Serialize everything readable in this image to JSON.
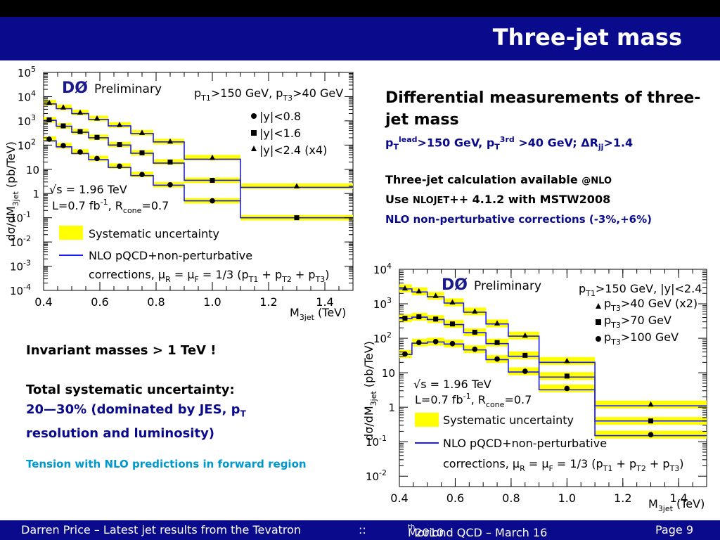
{
  "slide": {
    "title": "Three-jet mass"
  },
  "right_text": {
    "heading": "Differential measurements of three-jet mass",
    "cuts": {
      "pt": "p",
      "t_sub": "T",
      "lead_sup": "lead",
      "lead_val": ">150 GeV, p",
      "t_sub2": "T",
      "third_sup": "3rd",
      "third_val": " >40 GeV;  ",
      "dr": "ΔR",
      "jj_sub": "jj",
      "dr_val": ">1.4"
    },
    "calc_line": "Three-jet calculation available ",
    "calc_at": "@NLO",
    "use_line_a": "Use ",
    "use_nlojet": "NLOJET",
    "use_line_b": "++ 4.1.2 with MSTW2008",
    "np_line": "NLO non-perturbative corrections (-3%,+6%)"
  },
  "left_text": {
    "invariant": "Invariant masses > 1 TeV !",
    "total_syst": "Total systematic uncertainty:",
    "syst_detail_a": "20—30% (dominated by JES, p",
    "syst_detail_t": "T",
    "syst_detail_b": "resolution and luminosity)",
    "tension": "Tension with NLO predictions in forward region"
  },
  "footer": {
    "author": "Darren Price – Latest jet results from the Tevatron",
    "sep": "::",
    "conf_a": "Moriond QCD – March 16",
    "conf_sup": "th",
    "conf_b": " 2010",
    "page": "Page 9"
  },
  "colors": {
    "title_bar": "#0a0a8c",
    "band": "#ffff00",
    "nlo_line": "#1a1aff",
    "tension_text": "#0099cc"
  },
  "chart_data": [
    {
      "type": "line",
      "title": "",
      "experiment": "DØ",
      "preliminary": "Preliminary",
      "xlabel": "M",
      "xlabel_sub": "3jet",
      "xunit": " (TeV)",
      "ylabel": "dσ/dM",
      "ylabel_sub": "3jet",
      "yunit": " (pb/TeV)",
      "xlim": [
        0.4,
        1.5
      ],
      "ylim": [
        0.0001,
        100000
      ],
      "yscale": "log",
      "xticks": [
        "0.4",
        "0.6",
        "0.8",
        "1.0",
        "1.2",
        "1.4"
      ],
      "xtick_values": [
        0.4,
        0.6,
        0.8,
        1.0,
        1.2,
        1.4
      ],
      "yticks": [
        {
          "value": 100000,
          "base": "10",
          "exp": "5"
        },
        {
          "value": 10000,
          "base": "10",
          "exp": "4"
        },
        {
          "value": 1000,
          "base": "10",
          "exp": "3"
        },
        {
          "value": 100,
          "base": "10",
          "exp": "2"
        },
        {
          "value": 10,
          "base": "10",
          "exp": ""
        },
        {
          "value": 1,
          "base": "1",
          "exp": ""
        },
        {
          "value": 0.1,
          "base": "10",
          "exp": "-1"
        },
        {
          "value": 0.01,
          "base": "10",
          "exp": "-2"
        },
        {
          "value": 0.001,
          "base": "10",
          "exp": "-3"
        },
        {
          "value": 0.0001,
          "base": "10",
          "exp": "-4"
        }
      ],
      "cuts": {
        "a": "p",
        "a_sub": "T1",
        "b": ">150 GeV, p",
        "b_sub": "T3",
        "c": ">40 GeV"
      },
      "bin_edges": [
        0.4,
        0.445,
        0.5,
        0.56,
        0.63,
        0.71,
        0.79,
        0.9,
        1.1,
        1.5
      ],
      "series": [
        {
          "name": "|y|<0.8",
          "marker": "circle",
          "x": [
            0.42,
            0.47,
            0.53,
            0.59,
            0.67,
            0.75,
            0.85,
            1.0,
            1.3
          ],
          "y": [
            175,
            95,
            52,
            28,
            13.5,
            6.1,
            2.3,
            0.5,
            null
          ],
          "nlo": [
            150,
            85,
            45,
            25,
            12,
            5.5,
            2.2,
            0.5,
            null
          ]
        },
        {
          "name": "|y|<1.6",
          "marker": "square",
          "x": [
            0.42,
            0.47,
            0.53,
            0.59,
            0.67,
            0.75,
            0.85,
            1.0,
            1.3
          ],
          "y": [
            1100,
            620,
            360,
            210,
            105,
            48,
            20,
            3.5,
            0.1
          ],
          "nlo": [
            1050,
            600,
            340,
            200,
            100,
            46,
            18,
            3.5,
            0.1
          ]
        },
        {
          "name": "|y|<2.4 (x4)",
          "marker": "triangle",
          "x": [
            0.42,
            0.47,
            0.53,
            0.59,
            0.67,
            0.75,
            0.85,
            1.0,
            1.3
          ],
          "y": [
            5600,
            3600,
            2200,
            1250,
            680,
            320,
            140,
            30,
            2.0
          ],
          "nlo": [
            5000,
            3200,
            2000,
            1150,
            620,
            300,
            135,
            26,
            1.8
          ]
        }
      ],
      "sqrt_s": "√s = 1.96 TeV",
      "lumi_a": "L=0.7 fb",
      "lumi_sup": "-1",
      "lumi_b": ", R",
      "lumi_sub": "cone",
      "lumi_c": "=0.7",
      "legend_syst": "Systematic uncertainty",
      "legend_nlo": "NLO pQCD+non-perturbative",
      "legend_corr_a": "corrections, μ",
      "legend_corr_r": "R",
      "legend_corr_b": " = μ",
      "legend_corr_f": "F",
      "legend_corr_c": " = 1/3 (p",
      "legend_corr_t1": "T1",
      "legend_corr_d": " + p",
      "legend_corr_t2": "T2",
      "legend_corr_e": " + p",
      "legend_corr_t3": "T3",
      "legend_corr_f2": ")",
      "grid": false,
      "legend_position": "right"
    },
    {
      "type": "line",
      "title": "",
      "experiment": "DØ",
      "preliminary": "Preliminary",
      "xlabel": "M",
      "xlabel_sub": "3jet",
      "xunit": " (TeV)",
      "ylabel": "dσ/dM",
      "ylabel_sub": "3jet",
      "yunit": " (pb/TeV)",
      "xlim": [
        0.4,
        1.5
      ],
      "ylim": [
        0.005,
        10000
      ],
      "yscale": "log",
      "xticks": [
        "0.4",
        "0.6",
        "0.8",
        "1.0",
        "1.2",
        "1.4"
      ],
      "xtick_values": [
        0.4,
        0.6,
        0.8,
        1.0,
        1.2,
        1.4
      ],
      "yticks": [
        {
          "value": 10000,
          "base": "10",
          "exp": "4"
        },
        {
          "value": 1000,
          "base": "10",
          "exp": "3"
        },
        {
          "value": 100,
          "base": "10",
          "exp": "2"
        },
        {
          "value": 10,
          "base": "10",
          "exp": ""
        },
        {
          "value": 1,
          "base": "1",
          "exp": ""
        },
        {
          "value": 0.1,
          "base": "10",
          "exp": "-1"
        },
        {
          "value": 0.01,
          "base": "10",
          "exp": "-2"
        }
      ],
      "cuts": {
        "a": "p",
        "a_sub": "T1",
        "b": ">150 GeV, |y|<2.4"
      },
      "bin_edges": [
        0.4,
        0.445,
        0.5,
        0.56,
        0.63,
        0.71,
        0.79,
        0.9,
        1.1,
        1.5
      ],
      "series": [
        {
          "name_a": "p",
          "name_sub": "T3",
          "name_b": ">40 GeV (x2)",
          "marker": "triangle",
          "x": [
            0.42,
            0.47,
            0.53,
            0.59,
            0.67,
            0.75,
            0.85,
            1.0,
            1.3
          ],
          "y": [
            2800,
            2300,
            1700,
            1100,
            600,
            270,
            120,
            22,
            1.2
          ],
          "nlo": [
            2700,
            2200,
            1600,
            1050,
            570,
            260,
            115,
            20,
            1.1
          ]
        },
        {
          "name_a": "p",
          "name_sub": "T3",
          "name_b": ">70 GeV",
          "marker": "square",
          "x": [
            0.42,
            0.47,
            0.53,
            0.59,
            0.67,
            0.75,
            0.85,
            1.0,
            1.3
          ],
          "y": [
            380,
            420,
            360,
            260,
            150,
            75,
            32,
            8,
            0.4
          ],
          "nlo": [
            370,
            410,
            350,
            250,
            145,
            70,
            30,
            7.5,
            0.4
          ]
        },
        {
          "name_a": "p",
          "name_sub": "T3",
          "name_b": ">100 GeV",
          "marker": "circle",
          "x": [
            0.42,
            0.47,
            0.53,
            0.59,
            0.67,
            0.75,
            0.85,
            1.0,
            1.3
          ],
          "y": [
            35,
            75,
            80,
            70,
            48,
            25,
            11,
            3.5,
            0.16
          ],
          "nlo": [
            34,
            72,
            78,
            68,
            46,
            24,
            10.5,
            3.2,
            0.15
          ]
        }
      ],
      "sqrt_s": "√s = 1.96 TeV",
      "lumi_a": "L=0.7 fb",
      "lumi_sup": "-1",
      "lumi_b": ", R",
      "lumi_sub": "cone",
      "lumi_c": "=0.7",
      "legend_syst": "Systematic uncertainty",
      "legend_nlo": "NLO pQCD+non-perturbative",
      "legend_corr_a": "corrections, μ",
      "legend_corr_r": "R",
      "legend_corr_b": " = μ",
      "legend_corr_f": "F",
      "legend_corr_c": " = 1/3 (p",
      "legend_corr_t1": "T1",
      "legend_corr_d": " + p",
      "legend_corr_t2": "T2",
      "legend_corr_e": " + p",
      "legend_corr_t3": "T3",
      "legend_corr_f2": ")",
      "grid": false,
      "legend_position": "right"
    }
  ]
}
